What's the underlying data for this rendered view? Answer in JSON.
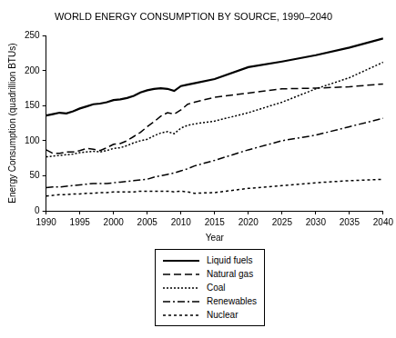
{
  "chart_data": {
    "type": "line",
    "title": "WORLD ENERGY CONSUMPTION BY SOURCE, 1990–2040",
    "x_label": "Year",
    "y_label": "Energy Consumption (quadrillion BTUs)",
    "x": [
      1990,
      1991,
      1992,
      1993,
      1994,
      1995,
      1996,
      1997,
      1998,
      1999,
      2000,
      2001,
      2002,
      2003,
      2004,
      2005,
      2006,
      2007,
      2008,
      2009,
      2010,
      2011,
      2012,
      2015,
      2020,
      2025,
      2030,
      2035,
      2040
    ],
    "series": [
      {
        "name": "Liquid fuels",
        "color": "#000000",
        "line_style": "solid",
        "values": [
          136,
          138,
          140,
          139,
          142,
          146,
          149,
          152,
          153,
          155,
          158,
          159,
          161,
          164,
          169,
          172,
          174,
          175,
          174,
          171,
          178,
          180,
          182,
          188,
          205,
          213,
          222,
          233,
          246
        ]
      },
      {
        "name": "Natural gas",
        "color": "#000000",
        "line_style": "dashed",
        "values": [
          87,
          82,
          82,
          84,
          84,
          86,
          89,
          88,
          86,
          90,
          95,
          96,
          100,
          106,
          112,
          120,
          127,
          135,
          140,
          138,
          144,
          152,
          155,
          162,
          168,
          174,
          175,
          177,
          181
        ]
      },
      {
        "name": "Coal",
        "color": "#000000",
        "line_style": "dotted",
        "values": [
          77,
          78,
          79,
          80,
          81,
          83,
          84,
          85,
          84,
          86,
          89,
          90,
          93,
          97,
          100,
          102,
          107,
          111,
          113,
          110,
          118,
          122,
          124,
          128,
          140,
          155,
          174,
          190,
          212
        ]
      },
      {
        "name": "Renewables",
        "color": "#000000",
        "line_style": "dashdot",
        "values": [
          33,
          34,
          34,
          35,
          36,
          37,
          38,
          39,
          39,
          39,
          40,
          41,
          42,
          43,
          44,
          45,
          48,
          50,
          52,
          54,
          57,
          60,
          64,
          72,
          87,
          100,
          108,
          120,
          132
        ]
      },
      {
        "name": "Nuclear",
        "color": "#000000",
        "line_style": "shortdash",
        "values": [
          21,
          22,
          23,
          23,
          24,
          24,
          25,
          25,
          26,
          26,
          27,
          27,
          27,
          27,
          28,
          28,
          28,
          28,
          28,
          27,
          28,
          27,
          25,
          26,
          32,
          36,
          40,
          43,
          45
        ]
      }
    ],
    "xlim": [
      1990,
      2040
    ],
    "xticks": [
      1990,
      1995,
      2000,
      2005,
      2010,
      2015,
      2020,
      2025,
      2030,
      2035,
      2040
    ],
    "ylim": [
      0,
      250
    ],
    "yticks": [
      0,
      50,
      100,
      150,
      200,
      250
    ],
    "grid": false,
    "legend": "bottom"
  }
}
